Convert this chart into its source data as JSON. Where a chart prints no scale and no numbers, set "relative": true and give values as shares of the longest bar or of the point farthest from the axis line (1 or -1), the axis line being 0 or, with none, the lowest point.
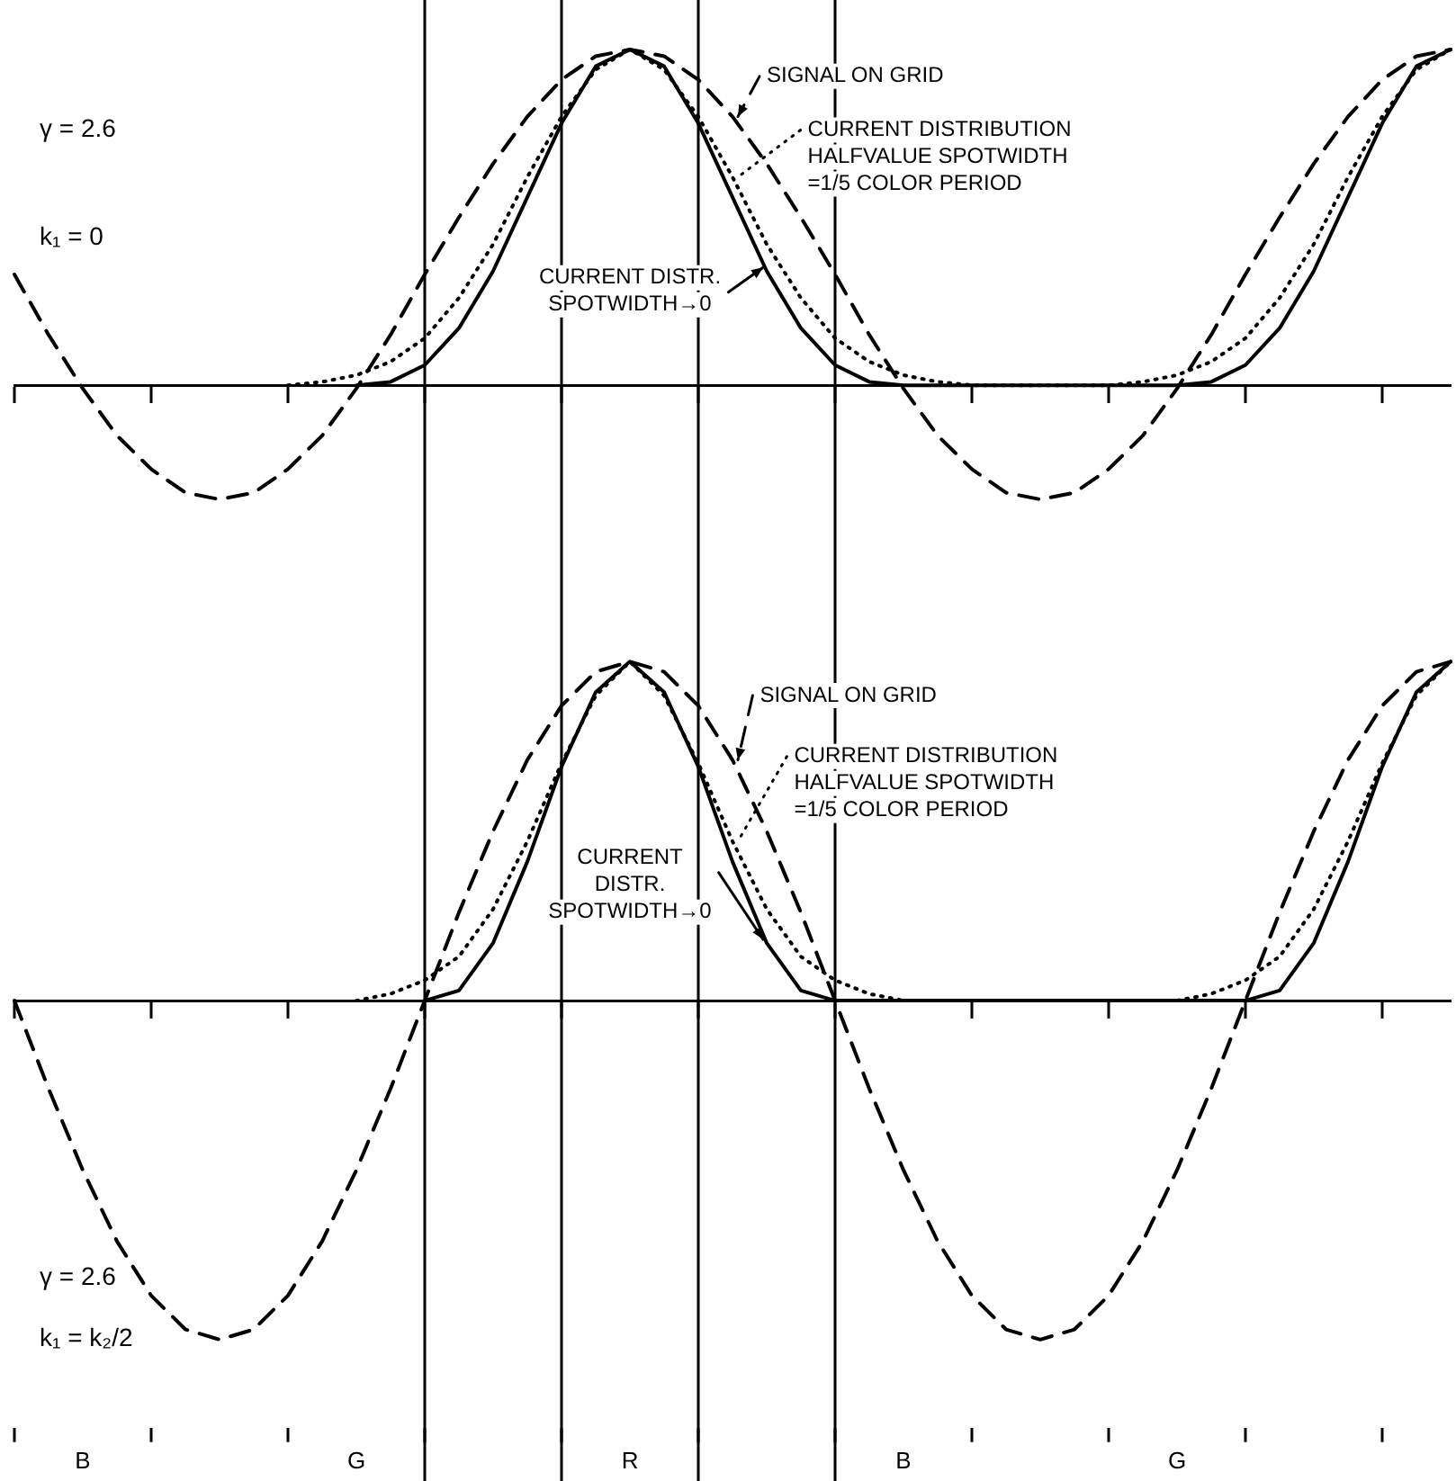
{
  "chart_data": [
    {
      "type": "line",
      "relative": true,
      "grid": "x",
      "marker": "none",
      "annotations": [
        "γ = 2.6",
        "k₁ = 0"
      ],
      "categories": [
        null,
        null,
        null,
        null,
        null,
        null,
        null,
        null,
        null,
        null,
        null,
        null,
        null,
        null,
        null,
        null,
        null,
        null,
        null,
        null,
        null,
        null,
        null,
        null,
        null,
        null,
        null,
        null,
        null,
        null,
        null,
        null,
        null,
        null,
        null,
        null,
        null,
        null,
        null,
        null,
        null,
        null,
        null
      ],
      "series": [
        {
          "name": "SIGNAL ON GRID",
          "color": "#000000",
          "line_style": "dashed",
          "values": [
            0.33,
            0.15,
            -0.01,
            -0.15,
            -0.25,
            -0.32,
            -0.34,
            -0.32,
            -0.25,
            -0.15,
            -0.01,
            0.15,
            0.33,
            0.5,
            0.66,
            0.8,
            0.91,
            0.98,
            1,
            0.98,
            0.91,
            0.8,
            0.66,
            0.5,
            0.33,
            0.15,
            -0.01,
            -0.15,
            -0.25,
            -0.32,
            -0.34,
            -0.32,
            -0.25,
            -0.15,
            -0.01,
            0.15,
            0.33,
            0.5,
            0.66,
            0.8,
            0.91,
            0.98,
            1
          ]
        },
        {
          "name": "CURRENT DISTR.\nSPOTWIDTH→0",
          "color": "#000000",
          "line_style": "solid",
          "values": [
            null,
            null,
            null,
            null,
            null,
            null,
            null,
            null,
            null,
            null,
            0,
            0.01,
            0.06,
            0.17,
            0.34,
            0.56,
            0.78,
            0.95,
            1,
            0.95,
            0.78,
            0.56,
            0.34,
            0.17,
            0.06,
            0.01,
            0,
            0,
            0,
            0,
            0,
            0,
            0,
            0,
            0,
            0.01,
            0.06,
            0.17,
            0.34,
            0.56,
            0.78,
            0.95,
            1
          ]
        },
        {
          "name": "CURRENT DISTRIBUTION\nHALFVALUE SPOTWIDTH\n=1/5 COLOR PERIOD",
          "color": "#000000",
          "line_style": "dotted",
          "values": [
            null,
            null,
            null,
            null,
            null,
            null,
            null,
            null,
            0,
            0.01,
            0.03,
            0.07,
            0.14,
            0.26,
            0.42,
            0.62,
            0.8,
            0.94,
            1,
            0.94,
            0.8,
            0.62,
            0.42,
            0.26,
            0.14,
            0.07,
            0.03,
            0.01,
            0,
            0,
            0,
            0,
            0,
            0.01,
            0.03,
            0.07,
            0.14,
            0.26,
            0.42,
            0.62,
            0.8,
            0.94,
            1
          ]
        }
      ]
    },
    {
      "type": "line",
      "relative": true,
      "grid": "x",
      "marker": "none",
      "annotations": [
        "γ = 2.6",
        "k₁ = k₂/2"
      ],
      "categories": [
        null,
        null,
        "B",
        null,
        null,
        null,
        null,
        null,
        null,
        null,
        "G",
        null,
        null,
        null,
        null,
        null,
        null,
        null,
        "R",
        null,
        null,
        null,
        null,
        null,
        null,
        null,
        "B",
        null,
        null,
        null,
        null,
        null,
        null,
        null,
        "G",
        null,
        null,
        null,
        null,
        null,
        null,
        null,
        null
      ],
      "series": [
        {
          "name": "SIGNAL ON GRID",
          "color": "#000000",
          "line_style": "dashed",
          "values": [
            0,
            -0.26,
            -0.5,
            -0.71,
            -0.87,
            -0.97,
            -1,
            -0.97,
            -0.87,
            -0.71,
            -0.5,
            -0.26,
            0,
            0.26,
            0.5,
            0.71,
            0.87,
            0.97,
            1,
            0.97,
            0.87,
            0.71,
            0.5,
            0.26,
            0,
            -0.26,
            -0.5,
            -0.71,
            -0.87,
            -0.97,
            -1,
            -0.97,
            -0.87,
            -0.71,
            -0.5,
            -0.26,
            0,
            0.26,
            0.5,
            0.71,
            0.87,
            0.97,
            1
          ]
        },
        {
          "name": "CURRENT\nDISTR.\nSPOTWIDTH→0",
          "color": "#000000",
          "line_style": "solid",
          "values": [
            null,
            null,
            null,
            null,
            null,
            null,
            null,
            null,
            null,
            null,
            null,
            null,
            0,
            0.03,
            0.17,
            0.41,
            0.69,
            0.91,
            1,
            0.91,
            0.69,
            0.41,
            0.17,
            0.03,
            0,
            0,
            0,
            0,
            0,
            0,
            0,
            0,
            0,
            0,
            0,
            0,
            0,
            0.03,
            0.17,
            0.41,
            0.69,
            0.91,
            1
          ]
        },
        {
          "name": "CURRENT DISTRIBUTION\nHALFVALUE SPOTWIDTH\n=1/5 COLOR PERIOD",
          "color": "#000000",
          "line_style": "dotted",
          "values": [
            null,
            null,
            null,
            null,
            null,
            null,
            null,
            null,
            null,
            null,
            0,
            0.02,
            0.06,
            0.13,
            0.27,
            0.47,
            0.7,
            0.9,
            1,
            0.9,
            0.7,
            0.47,
            0.27,
            0.13,
            0.06,
            0.02,
            0,
            0,
            0,
            0,
            0,
            0,
            0,
            0,
            0,
            0.02,
            0.06,
            0.13,
            0.27,
            0.47,
            0.7,
            0.9,
            1
          ]
        }
      ]
    }
  ]
}
